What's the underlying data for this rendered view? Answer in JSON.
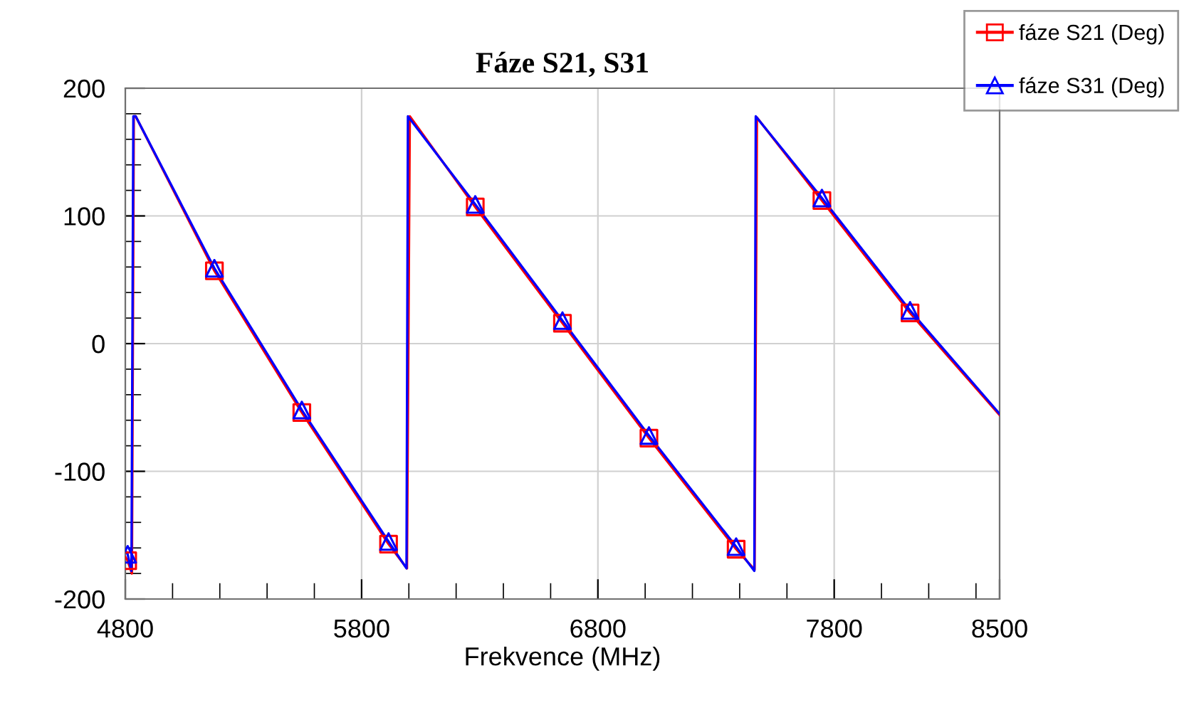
{
  "chart_data": {
    "type": "line",
    "title": "Fáze S21, S31",
    "xlabel": "Frekvence (MHz)",
    "xlim": [
      4800,
      8500
    ],
    "xticks": [
      4800,
      5800,
      6800,
      7800,
      8500
    ],
    "ylim": [
      -200,
      200
    ],
    "yticks": [
      -200,
      -100,
      0,
      100,
      200
    ],
    "grid": true,
    "legend": "top right",
    "series": [
      {
        "color": "#ff0000",
        "x": [
          4800,
          4810,
          4828,
          4836,
          4844,
          5177,
          5547,
          5914,
          5992,
          6004,
          6281,
          6650,
          7016,
          7385,
          7463,
          7473,
          7748,
          8121,
          8500
        ],
        "values": [
          -167,
          -170,
          -180,
          178,
          178,
          57,
          -54,
          -157,
          -176,
          178,
          107,
          16,
          -74,
          -161,
          -177,
          177,
          112,
          24,
          -56
        ]
      },
      {
        "color": "#0000ff",
        "x": [
          4800,
          4810,
          4826,
          4834,
          4844,
          5177,
          5547,
          5914,
          5990,
          5996,
          6281,
          6650,
          7016,
          7385,
          7462,
          7468,
          7748,
          8121,
          8500
        ],
        "values": [
          -162,
          -165,
          -178,
          178,
          178,
          59,
          -52,
          -155,
          -176,
          178,
          109,
          18,
          -72,
          -159,
          -178,
          178,
          114,
          26,
          -55
        ]
      },
      {
        "type": "scatter",
        "name": "fáze S21 (Deg)",
        "color": "#ff0000",
        "marker": "square",
        "line_style": "solid",
        "x": [
          4810,
          5177,
          5547,
          5914,
          6281,
          6650,
          7016,
          7385,
          7748,
          8121
        ],
        "values": [
          -170,
          57,
          -54,
          -157,
          107,
          16,
          -74,
          -161,
          112,
          24
        ]
      },
      {
        "type": "scatter",
        "name": "fáze S31 (Deg)",
        "color": "#0000ff",
        "marker": "triangle",
        "line_style": "solid",
        "x": [
          4810,
          5177,
          5547,
          5914,
          6281,
          6650,
          7016,
          7385,
          7748,
          8121
        ],
        "values": [
          -165,
          59,
          -52,
          -155,
          109,
          18,
          -72,
          -159,
          114,
          26
        ]
      }
    ]
  }
}
